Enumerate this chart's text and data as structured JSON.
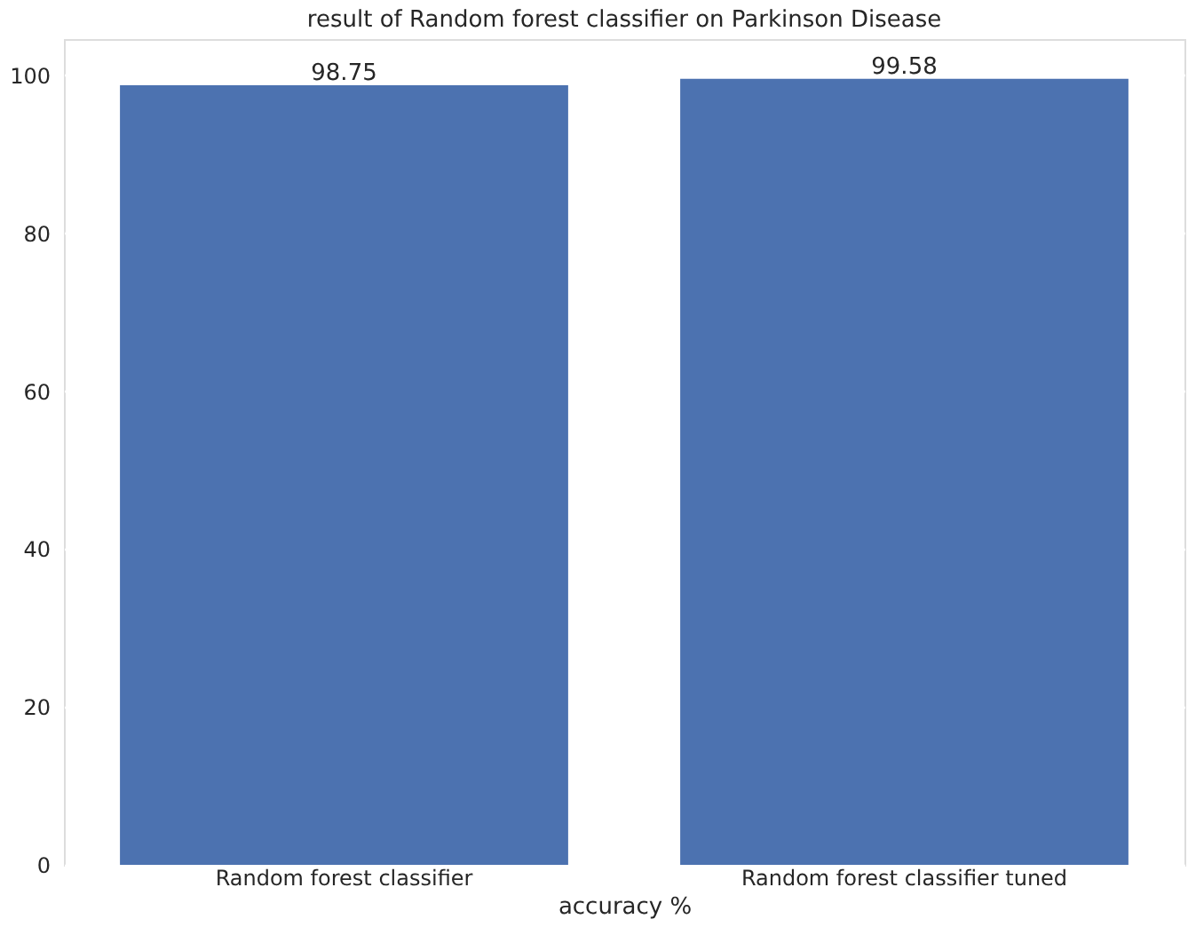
{
  "chart_data": {
    "type": "bar",
    "title": "result of Random forest classifier on Parkinson Disease",
    "xlabel": "accuracy %",
    "categories": [
      "Random forest classifier",
      "Random forest classifier tuned"
    ],
    "values": [
      98.75,
      99.58
    ],
    "color": "#4c72b0",
    "ylim": [
      0,
      104.6
    ],
    "yticks": [
      0,
      20,
      40,
      60,
      80,
      100
    ],
    "grid": "y",
    "data_labels": true
  }
}
